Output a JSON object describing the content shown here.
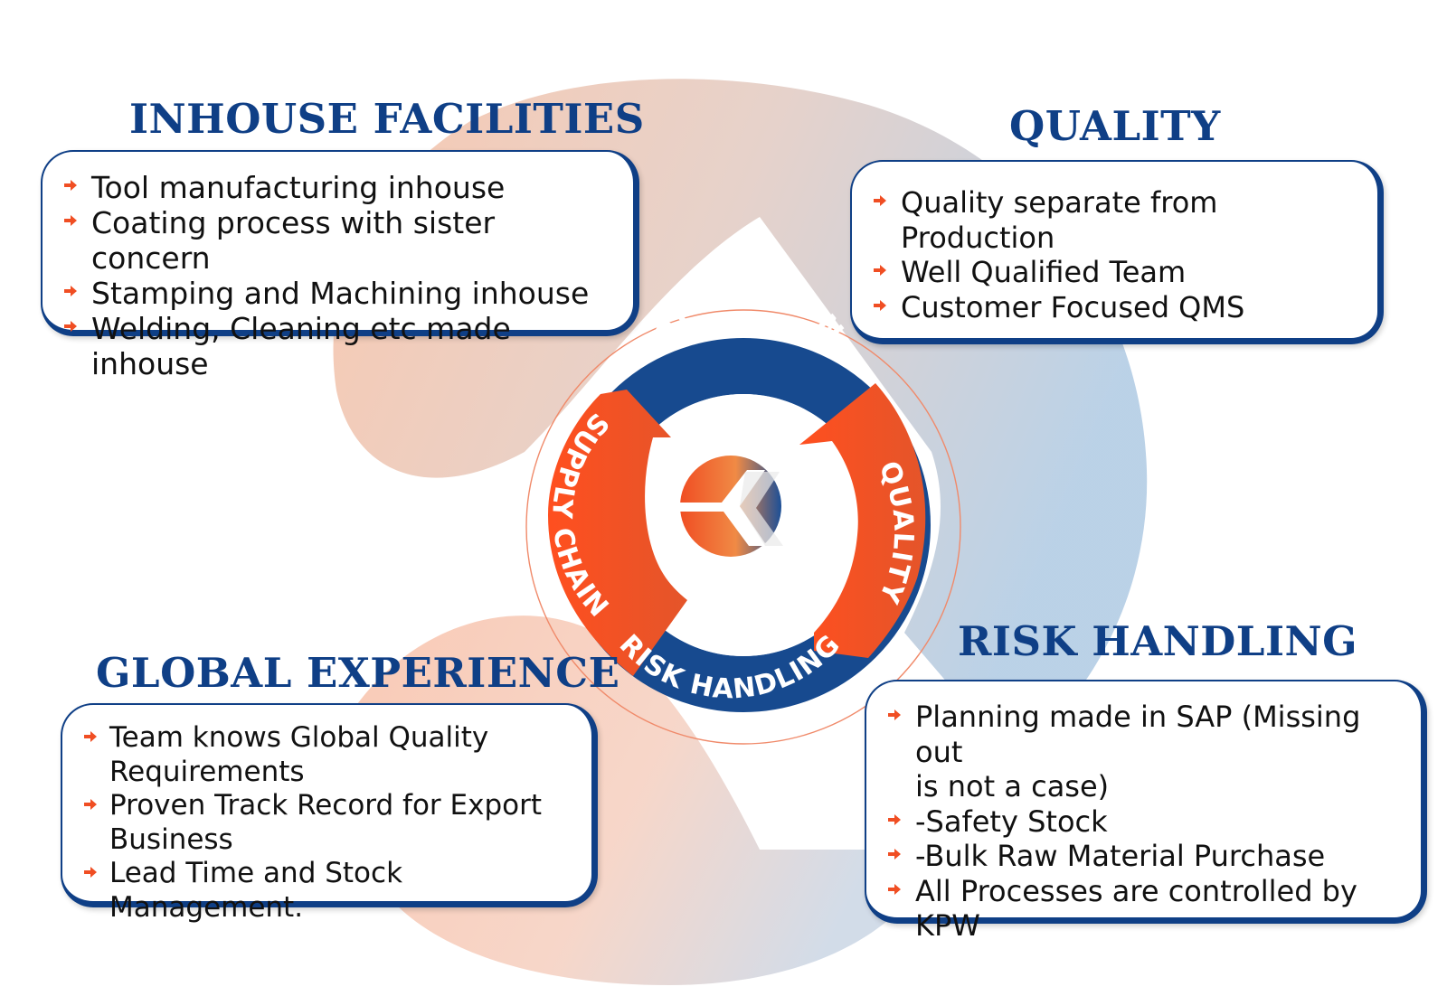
{
  "colors": {
    "navy": "#0f3f86",
    "orange": "#f04e23",
    "peach": "#f7c7b0",
    "light_blue": "#aec6e0"
  },
  "bullet_icon": "orange-arrow-icon",
  "center_ring": {
    "top_label": "OPERATION",
    "right_label": "QUALITY",
    "bottom_label": "RISK HANDLING",
    "left_label": "SUPPLY CHAIN",
    "center_icon": "kpw-logo-icon"
  },
  "sections": {
    "inhouse": {
      "title": "INHOUSE FACILITIES",
      "items": [
        "Tool manufacturing inhouse",
        "Coating process with sister concern",
        "Stamping and Machining inhouse",
        "Welding, Cleaning etc made inhouse"
      ]
    },
    "quality": {
      "title": "QUALITY",
      "items": [
        "Quality separate from Production",
        "Well Qualified Team",
        "Customer Focused QMS"
      ]
    },
    "risk": {
      "title": "RISK HANDLING",
      "items": [
        "Planning made in SAP (Missing out",
        "is not a case)",
        "-Safety Stock",
        "-Bulk Raw Material Purchase",
        "All Processes are controlled by",
        "KPW"
      ]
    },
    "global": {
      "title": "GLOBAL EXPERIENCE",
      "items": [
        "Team knows Global Quality",
        "Requirements",
        "Proven Track Record for Export",
        "Business",
        "Lead Time and Stock Management."
      ]
    }
  }
}
